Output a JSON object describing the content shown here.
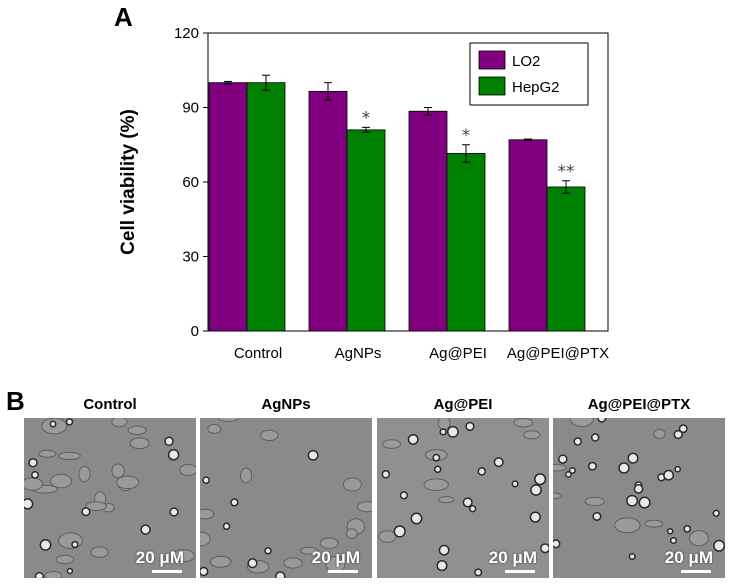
{
  "figure": {
    "panel_a_label": "A",
    "panel_b_label": "B"
  },
  "chart_data": {
    "type": "bar",
    "title": "",
    "xlabel": "",
    "ylabel": "Cell viability (%)",
    "ylim": [
      0,
      120
    ],
    "yticks": [
      0,
      30,
      60,
      90,
      120
    ],
    "categories": [
      "Control",
      "AgNPs",
      "Ag@PEI",
      "Ag@PEI@PTX"
    ],
    "series": [
      {
        "name": "LO2",
        "color": "#800080",
        "values": [
          100,
          96.5,
          88.5,
          77
        ],
        "errors": [
          0.5,
          3.5,
          1.5,
          0.3
        ]
      },
      {
        "name": "HepG2",
        "color": "#008000",
        "values": [
          100,
          81,
          71.5,
          58
        ],
        "errors": [
          3,
          1,
          3.5,
          2.5
        ]
      }
    ],
    "annotations": [
      {
        "category": "AgNPs",
        "series": "HepG2",
        "text": "*"
      },
      {
        "category": "Ag@PEI",
        "series": "HepG2",
        "text": "*"
      },
      {
        "category": "Ag@PEI@PTX",
        "series": "HepG2",
        "text": "**"
      }
    ],
    "legend": "top-right",
    "grid": false
  },
  "micrographs": [
    {
      "label": "Control",
      "scale_text": "20 μM"
    },
    {
      "label": "AgNPs",
      "scale_text": "20 μM"
    },
    {
      "label": "Ag@PEI",
      "scale_text": "20 μM"
    },
    {
      "label": "Ag@PEI@PTX",
      "scale_text": "20 μM"
    }
  ]
}
